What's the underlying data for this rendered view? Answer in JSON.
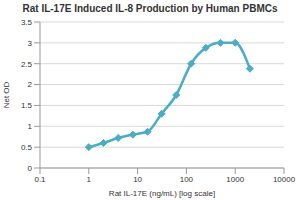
{
  "chart_data": {
    "type": "line",
    "title": "Rat IL-17E Induced IL-8 Production by Human PBMCs",
    "x_label": "Rat IL-17E (ng/mL) [log scale]",
    "y_label": "Net OD",
    "x": [
      1,
      2,
      4,
      8,
      16,
      31,
      62,
      125,
      250,
      500,
      1000,
      2000
    ],
    "values": [
      0.5,
      0.6,
      0.72,
      0.8,
      0.87,
      1.3,
      1.75,
      2.5,
      2.88,
      3.0,
      3.0,
      2.38
    ],
    "color": "#4bacc6",
    "marker": "diamond",
    "line_style": "solid",
    "log": "x",
    "xlim": [
      0.1,
      10000
    ],
    "xticks": [
      0.1,
      1,
      10,
      100,
      1000,
      10000
    ],
    "ylim": [
      0,
      3.5
    ],
    "yticks": [
      0,
      0.5,
      1,
      1.5,
      2,
      2.5,
      3,
      3.5
    ],
    "grid": true
  }
}
